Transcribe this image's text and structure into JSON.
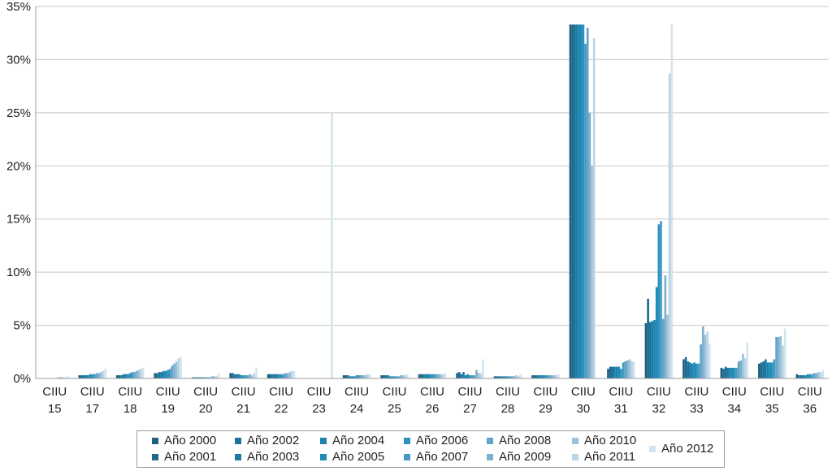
{
  "chart_data": {
    "type": "bar",
    "categories": [
      {
        "line1": "CIIU",
        "line2": "15"
      },
      {
        "line1": "CIIU",
        "line2": "17"
      },
      {
        "line1": "CIIU",
        "line2": "18"
      },
      {
        "line1": "CIIU",
        "line2": "19"
      },
      {
        "line1": "CIIU",
        "line2": "20"
      },
      {
        "line1": "CIIU",
        "line2": "21"
      },
      {
        "line1": "CIIU",
        "line2": "22"
      },
      {
        "line1": "CIIU",
        "line2": "23"
      },
      {
        "line1": "CIIU",
        "line2": "24"
      },
      {
        "line1": "CIIU",
        "line2": "25"
      },
      {
        "line1": "CIIU",
        "line2": "26"
      },
      {
        "line1": "CIIU",
        "line2": "27"
      },
      {
        "line1": "CIIU",
        "line2": "28"
      },
      {
        "line1": "CIIU",
        "line2": "29"
      },
      {
        "line1": "CIIU",
        "line2": "30"
      },
      {
        "line1": "CIIU",
        "line2": "31"
      },
      {
        "line1": "CIIU",
        "line2": "32"
      },
      {
        "line1": "CIIU",
        "line2": "33"
      },
      {
        "line1": "CIIU",
        "line2": "34"
      },
      {
        "line1": "CIIU",
        "line2": "35"
      },
      {
        "line1": "CIIU",
        "line2": "36"
      }
    ],
    "y_ticks": [
      "0%",
      "5%",
      "10%",
      "15%",
      "20%",
      "25%",
      "30%",
      "35%"
    ],
    "ylim": [
      0,
      35
    ],
    "grid": true,
    "legend_position": "bottom",
    "series": [
      {
        "name": "Año 2000",
        "color": "#1f5f7f",
        "values": [
          0.0,
          0.3,
          0.3,
          0.5,
          0.1,
          0.5,
          0.4,
          0.0,
          0.3,
          0.3,
          0.4,
          0.5,
          0.2,
          0.3,
          33.3,
          0.9,
          5.2,
          1.8,
          1.0,
          1.4,
          0.4
        ]
      },
      {
        "name": "Año 2001",
        "color": "#1e6a8c",
        "values": [
          0.0,
          0.3,
          0.3,
          0.5,
          0.1,
          0.5,
          0.4,
          0.0,
          0.3,
          0.3,
          0.4,
          0.6,
          0.2,
          0.3,
          33.3,
          1.1,
          7.5,
          2.0,
          0.9,
          1.5,
          0.3
        ]
      },
      {
        "name": "Año 2002",
        "color": "#1d7399",
        "values": [
          0.0,
          0.3,
          0.3,
          0.6,
          0.1,
          0.4,
          0.4,
          0.0,
          0.3,
          0.3,
          0.4,
          0.4,
          0.2,
          0.3,
          33.3,
          1.1,
          5.3,
          1.6,
          1.1,
          1.6,
          0.3
        ]
      },
      {
        "name": "Año 2003",
        "color": "#1c7ba4",
        "values": [
          0.0,
          0.3,
          0.4,
          0.6,
          0.1,
          0.4,
          0.4,
          0.0,
          0.2,
          0.3,
          0.4,
          0.6,
          0.2,
          0.3,
          33.3,
          1.1,
          5.4,
          1.5,
          1.0,
          1.8,
          0.3
        ]
      },
      {
        "name": "Año 2004",
        "color": "#1c83ad",
        "values": [
          0.0,
          0.3,
          0.4,
          0.7,
          0.1,
          0.4,
          0.4,
          0.0,
          0.2,
          0.2,
          0.4,
          0.3,
          0.2,
          0.3,
          33.3,
          1.1,
          5.5,
          1.4,
          1.0,
          1.5,
          0.3
        ]
      },
      {
        "name": "Año 2005",
        "color": "#1f8ab6",
        "values": [
          0.0,
          0.4,
          0.4,
          0.7,
          0.1,
          0.3,
          0.4,
          0.0,
          0.2,
          0.2,
          0.4,
          0.4,
          0.2,
          0.3,
          33.3,
          1.1,
          8.6,
          1.5,
          1.0,
          1.5,
          0.4
        ]
      },
      {
        "name": "Año 2006",
        "color": "#2a92bd",
        "values": [
          0.0,
          0.4,
          0.5,
          0.8,
          0.1,
          0.3,
          0.4,
          0.0,
          0.3,
          0.2,
          0.4,
          0.3,
          0.2,
          0.3,
          33.3,
          0.9,
          14.5,
          1.4,
          1.0,
          1.5,
          0.4
        ]
      },
      {
        "name": "Año 2007",
        "color": "#4599c2",
        "values": [
          0.0,
          0.4,
          0.6,
          0.9,
          0.1,
          0.3,
          0.4,
          0.0,
          0.3,
          0.2,
          0.4,
          0.3,
          0.2,
          0.3,
          31.5,
          1.5,
          14.8,
          1.4,
          1.0,
          1.8,
          0.4
        ]
      },
      {
        "name": "Año 2008",
        "color": "#62a4c8",
        "values": [
          0.1,
          0.5,
          0.6,
          1.2,
          0.1,
          0.3,
          0.5,
          0.0,
          0.3,
          0.2,
          0.4,
          0.3,
          0.2,
          0.3,
          33.0,
          1.6,
          5.6,
          3.2,
          1.6,
          3.9,
          0.5
        ]
      },
      {
        "name": "Año 2009",
        "color": "#7db1cf",
        "values": [
          0.1,
          0.5,
          0.7,
          1.4,
          0.2,
          0.4,
          0.5,
          0.0,
          0.3,
          0.3,
          0.4,
          0.8,
          0.2,
          0.3,
          25.0,
          1.7,
          9.7,
          4.9,
          1.7,
          3.9,
          0.5
        ]
      },
      {
        "name": "Año 2010",
        "color": "#9bc2da",
        "values": [
          0.1,
          0.6,
          0.8,
          1.6,
          0.2,
          0.3,
          0.6,
          0.0,
          0.3,
          0.3,
          0.4,
          0.5,
          0.3,
          0.3,
          20.0,
          1.8,
          6.0,
          4.1,
          2.3,
          4.0,
          0.6
        ]
      },
      {
        "name": "Año 2011",
        "color": "#b9d4e5",
        "values": [
          0.1,
          0.7,
          0.9,
          1.9,
          0.2,
          0.5,
          0.7,
          0.0,
          0.4,
          0.3,
          0.4,
          0.5,
          0.2,
          0.3,
          32.0,
          1.6,
          28.7,
          4.4,
          1.9,
          3.1,
          0.6
        ]
      },
      {
        "name": "Año 2012",
        "color": "#d3e4ef",
        "values": [
          0.2,
          0.9,
          1.0,
          2.0,
          0.5,
          1.0,
          0.7,
          25.0,
          0.4,
          0.4,
          0.5,
          1.8,
          0.4,
          0.4,
          0.0,
          1.6,
          33.3,
          3.3,
          3.4,
          4.7,
          0.8
        ]
      }
    ]
  }
}
